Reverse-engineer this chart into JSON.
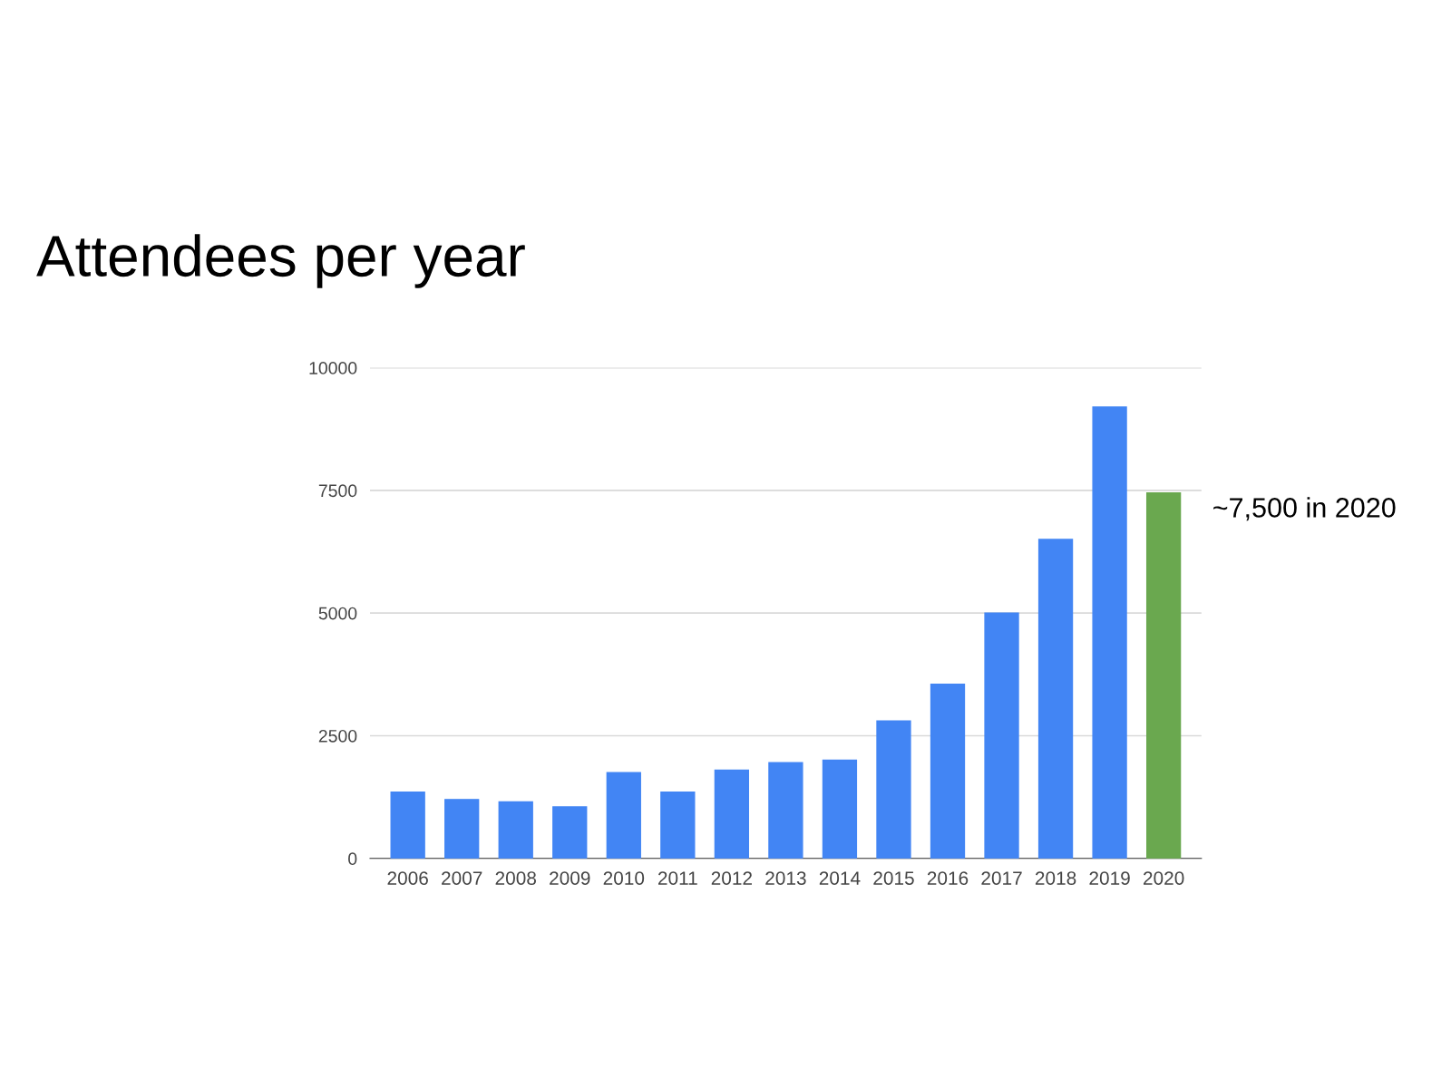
{
  "chart_data": {
    "type": "bar",
    "title": "Attendees per year",
    "categories": [
      "2006",
      "2007",
      "2008",
      "2009",
      "2010",
      "2011",
      "2012",
      "2013",
      "2014",
      "2015",
      "2016",
      "2017",
      "2018",
      "2019",
      "2020"
    ],
    "values": [
      1350,
      1200,
      1150,
      1050,
      1750,
      1350,
      1800,
      1950,
      2000,
      2800,
      3550,
      5000,
      6500,
      9200,
      7450
    ],
    "colors": [
      "#4285f4",
      "#4285f4",
      "#4285f4",
      "#4285f4",
      "#4285f4",
      "#4285f4",
      "#4285f4",
      "#4285f4",
      "#4285f4",
      "#4285f4",
      "#4285f4",
      "#4285f4",
      "#4285f4",
      "#4285f4",
      "#6aa84f"
    ],
    "ylim": [
      0,
      10000
    ],
    "yticks": [
      0,
      2500,
      5000,
      7500,
      10000
    ],
    "grid": "y",
    "annotations": [
      "~7,500 in 2020"
    ]
  }
}
